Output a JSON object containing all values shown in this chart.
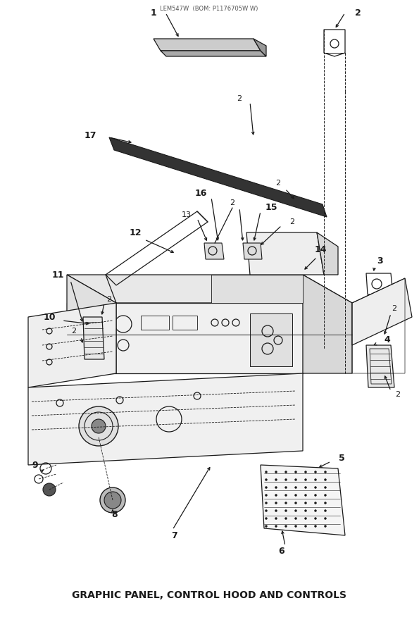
{
  "title": "GRAPHIC PANEL, CONTROL HOOD AND CONTROLS",
  "title_fontsize": 10,
  "background_color": "#ffffff",
  "diagram_color": "#1a1a1a",
  "fig_width": 5.95,
  "fig_height": 9.0,
  "dpi": 100
}
